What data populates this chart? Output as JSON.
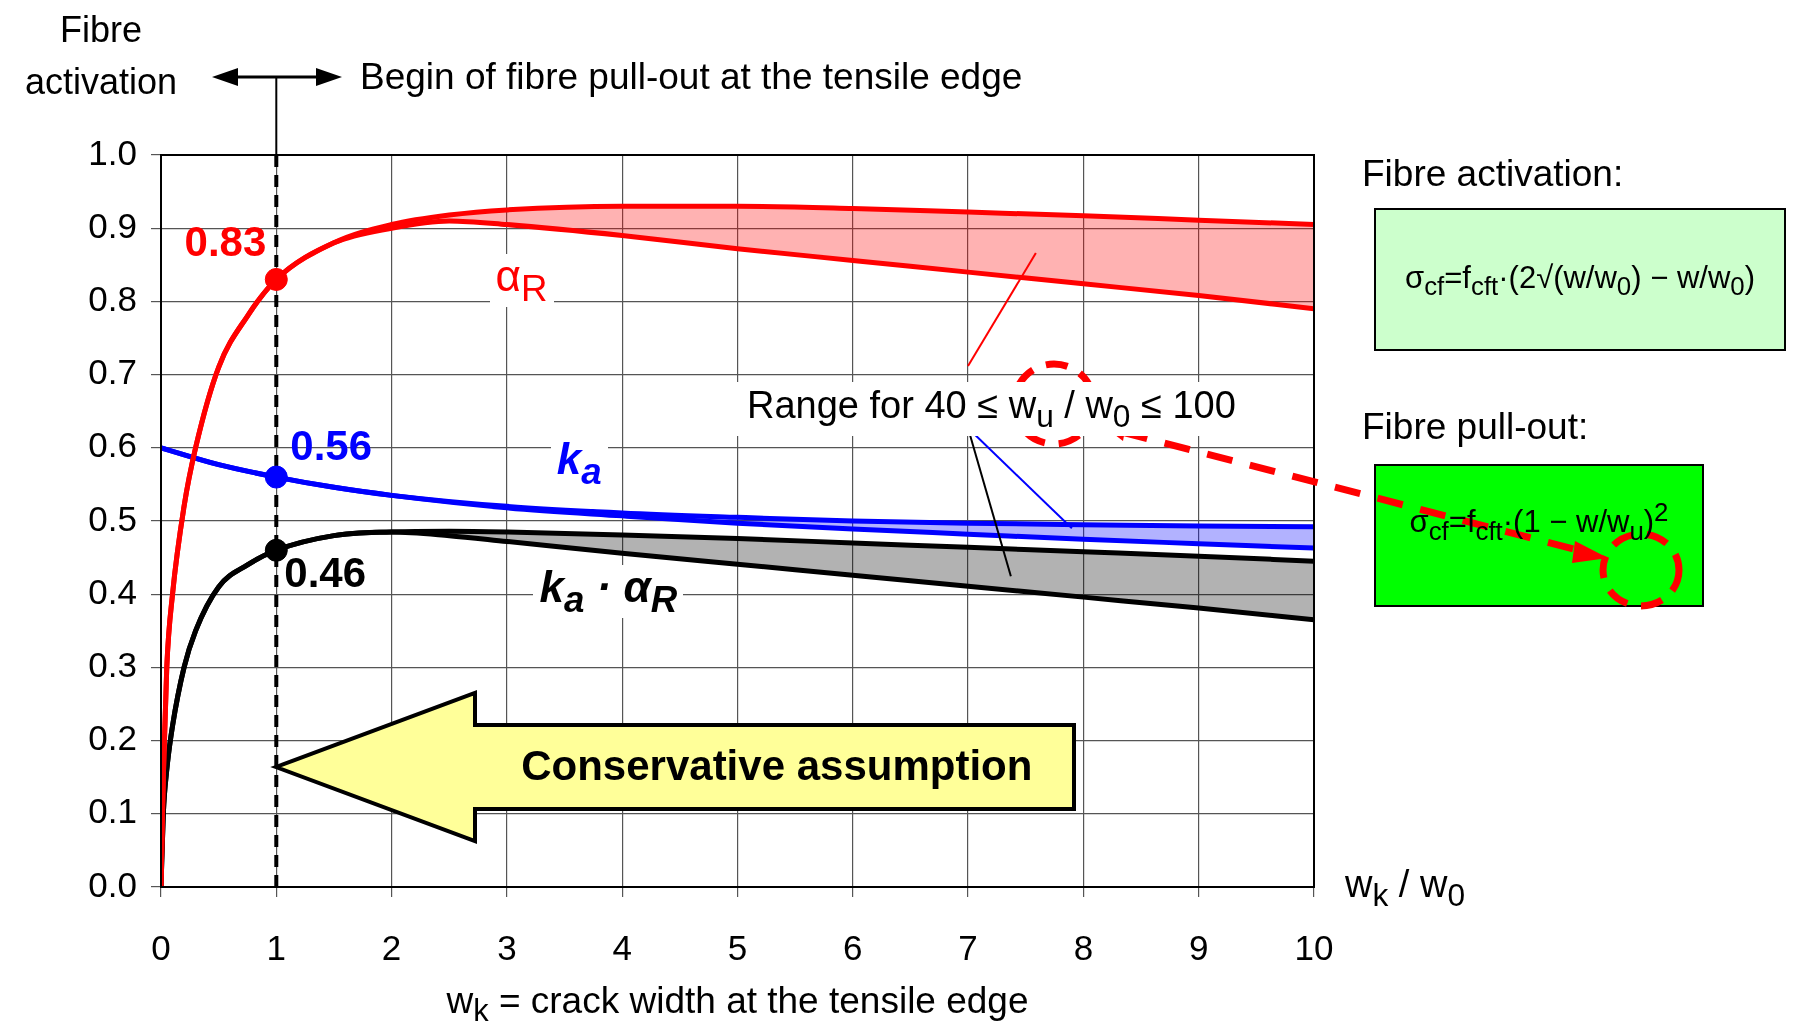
{
  "chart_data": {
    "type": "line",
    "xlabel": "w$_{k}$ = crack width at the tensile edge",
    "xlim": [
      0,
      10
    ],
    "xticks": [
      0,
      1,
      2,
      3,
      4,
      5,
      6,
      7,
      8,
      9,
      10
    ],
    "ylim": [
      0,
      1
    ],
    "yticks": [
      {
        "value": 0,
        "label": "0.0"
      },
      {
        "value": 0.1,
        "label": "0.1"
      },
      {
        "value": 0.2,
        "label": "0.2"
      },
      {
        "value": 0.3,
        "label": "0.3"
      },
      {
        "value": 0.4,
        "label": "0.4"
      },
      {
        "value": 0.5,
        "label": "0.5"
      },
      {
        "value": 0.6,
        "label": "0.6"
      },
      {
        "value": 0.7,
        "label": "0.7"
      },
      {
        "value": 0.8,
        "label": "0.8"
      },
      {
        "value": 0.9,
        "label": "0.9"
      },
      {
        "value": 1,
        "label": "1.0"
      }
    ],
    "grid": true,
    "marker": "none",
    "line_style": "solid",
    "series": [
      {
        "name": "α$_{R}$",
        "color": "#ff0000",
        "x": [
          0,
          0.02,
          0.05,
          0.1,
          0.2,
          0.3,
          0.5,
          0.75,
          1,
          1.5,
          2,
          2.5,
          3,
          4,
          5,
          6,
          7,
          8,
          9,
          10
        ],
        "values": [
          0,
          0.15,
          0.3,
          0.4,
          0.52,
          0.6,
          0.71,
          0.78,
          0.83,
          0.88,
          0.905,
          0.918,
          0.925,
          0.93,
          0.93,
          0.927,
          0.922,
          0.917,
          0.911,
          0.905
        ]
      },
      {
        "color": "#ff0000",
        "x": [
          0,
          0.02,
          0.05,
          0.1,
          0.2,
          0.3,
          0.5,
          0.75,
          1,
          1.5,
          2,
          2.5,
          3,
          4,
          5,
          6,
          7,
          8,
          9,
          10
        ],
        "values": [
          0,
          0.15,
          0.3,
          0.4,
          0.52,
          0.6,
          0.71,
          0.78,
          0.83,
          0.88,
          0.9,
          0.91,
          0.905,
          0.89,
          0.872,
          0.856,
          0.84,
          0.824,
          0.808,
          0.79
        ],
        "lower": [
          0,
          0.15,
          0.3,
          0.4,
          0.52,
          0.6,
          0.71,
          0.78,
          0.83,
          0.88,
          0.9,
          0.91,
          0.905,
          0.89,
          0.872,
          0.856,
          0.84,
          0.824,
          0.808,
          0.79
        ],
        "upper": [
          0,
          0.15,
          0.3,
          0.4,
          0.52,
          0.6,
          0.71,
          0.78,
          0.83,
          0.88,
          0.905,
          0.918,
          0.925,
          0.93,
          0.93,
          0.927,
          0.922,
          0.917,
          0.911,
          0.905
        ]
      },
      {
        "name": "k$_{a}$",
        "color": "#0000ff",
        "x": [
          0,
          0.5,
          1,
          1.5,
          2,
          3,
          4,
          5,
          6,
          7,
          8,
          9,
          10
        ],
        "values": [
          0.6,
          0.577,
          0.56,
          0.546,
          0.535,
          0.52,
          0.511,
          0.505,
          0.5,
          0.497,
          0.495,
          0.493,
          0.492
        ]
      },
      {
        "color": "#0000ff",
        "x": [
          0,
          0.5,
          1,
          1.5,
          2,
          3,
          4,
          5,
          6,
          7,
          8,
          9,
          10
        ],
        "values": [
          0.6,
          0.577,
          0.56,
          0.546,
          0.535,
          0.518,
          0.507,
          0.497,
          0.489,
          0.482,
          0.475,
          0.469,
          0.463
        ],
        "lower": [
          0.6,
          0.577,
          0.56,
          0.546,
          0.535,
          0.518,
          0.507,
          0.497,
          0.489,
          0.482,
          0.475,
          0.469,
          0.463
        ],
        "upper": [
          0.6,
          0.577,
          0.56,
          0.546,
          0.535,
          0.52,
          0.511,
          0.505,
          0.5,
          0.497,
          0.495,
          0.493,
          0.492
        ]
      },
      {
        "name": "k$_{a}$ · α$_{R}$",
        "color": "#000000",
        "x": [
          0,
          0.02,
          0.05,
          0.1,
          0.2,
          0.3,
          0.5,
          0.75,
          1,
          1.5,
          2,
          2.5,
          3,
          4,
          5,
          6,
          7,
          8,
          9,
          10
        ],
        "values": [
          0,
          0.1,
          0.16,
          0.22,
          0.3,
          0.35,
          0.41,
          0.44,
          0.46,
          0.48,
          0.485,
          0.486,
          0.485,
          0.481,
          0.476,
          0.47,
          0.464,
          0.458,
          0.452,
          0.445
        ]
      },
      {
        "color": "#000000",
        "x": [
          0,
          0.02,
          0.05,
          0.1,
          0.2,
          0.3,
          0.5,
          0.75,
          1,
          1.5,
          2,
          2.5,
          3,
          4,
          5,
          6,
          7,
          8,
          9,
          10
        ],
        "values": [
          0,
          0.1,
          0.16,
          0.22,
          0.3,
          0.35,
          0.41,
          0.44,
          0.46,
          0.48,
          0.485,
          0.48,
          0.472,
          0.456,
          0.441,
          0.426,
          0.411,
          0.396,
          0.381,
          0.365
        ],
        "lower": [
          0,
          0.1,
          0.16,
          0.22,
          0.3,
          0.35,
          0.41,
          0.44,
          0.46,
          0.48,
          0.485,
          0.48,
          0.472,
          0.456,
          0.441,
          0.426,
          0.411,
          0.396,
          0.381,
          0.365
        ],
        "upper": [
          0,
          0.1,
          0.16,
          0.22,
          0.3,
          0.35,
          0.41,
          0.44,
          0.46,
          0.48,
          0.485,
          0.486,
          0.485,
          0.481,
          0.476,
          0.47,
          0.464,
          0.458,
          0.452,
          0.445
        ]
      },
      {
        "type": "scatter",
        "marker": "circle",
        "x": [
          1,
          1,
          1
        ],
        "values": [
          0.83,
          0.56,
          0.46
        ],
        "colors": [
          "#ff0000",
          "#0000ff",
          "#000000"
        ],
        "value_labels": [
          "0.83",
          "0.56",
          "0.46"
        ]
      }
    ],
    "ref_lines": [
      {
        "axis": "x",
        "value": 1,
        "line_style": "dashed",
        "color": "#000000"
      }
    ],
    "annotations": [
      "Fibre activation",
      "Begin of fibre pull-out at the tensile edge",
      {
        "text": "Range for 40 ≤ w$_{u}$ / w$_{0}$ ≤ 100",
        "x": 7.9,
        "y": 0.49
      },
      "Conservative assumption",
      "w$_{k}$ / w$_{0}$",
      "Fibre activation:",
      "σ$_{cf}$=f$_{cft}$·(2√(w/w$_{0}$) − w/w$_{0}$)",
      "Fibre pull-out:",
      "σ$_{cf}$=f$_{cft}$·(1 − w/w$_{u}$)$^{2}$"
    ]
  }
}
